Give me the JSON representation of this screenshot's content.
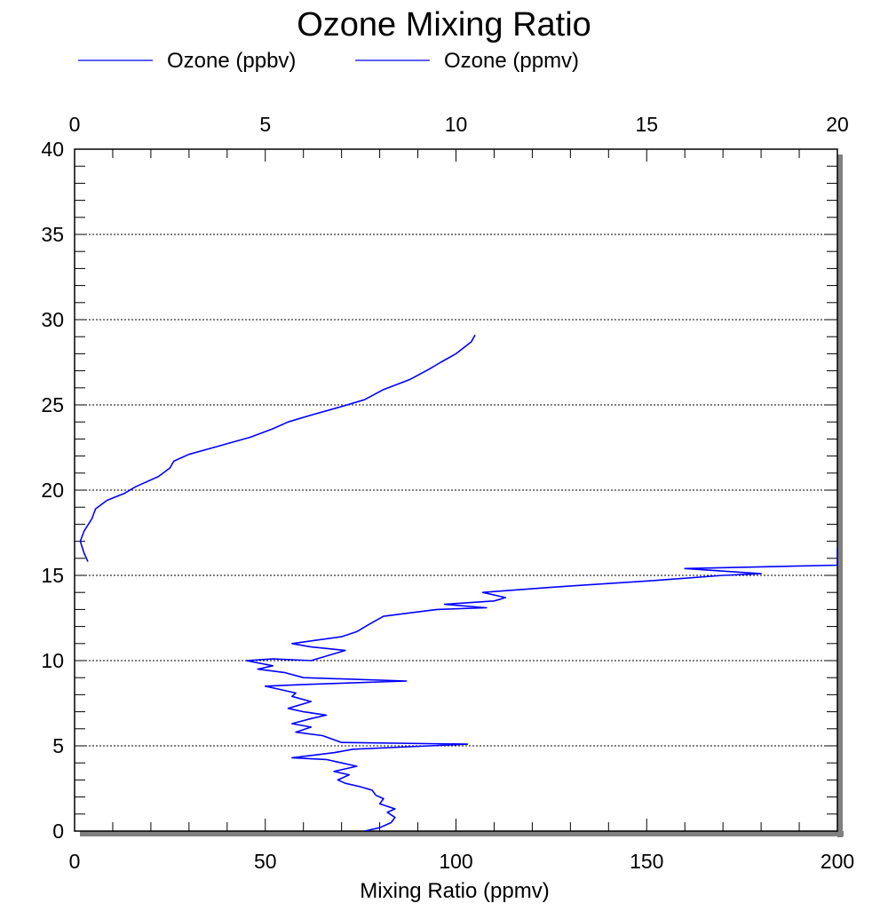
{
  "chart_data": {
    "type": "line",
    "title": "Ozone Mixing Ratio",
    "xlabel": "Mixing Ratio (ppmv)",
    "ylabel": "",
    "bottom_axis": {
      "range": [
        0,
        200
      ],
      "ticks": [
        "0",
        "50",
        "100",
        "150",
        "200"
      ],
      "tick_values": [
        0,
        50,
        100,
        150,
        200
      ]
    },
    "top_axis": {
      "range": [
        0,
        20
      ],
      "ticks": [
        "0",
        "5",
        "10",
        "15",
        "20"
      ],
      "tick_values": [
        0,
        5,
        10,
        15,
        20
      ]
    },
    "y_axis": {
      "range": [
        0,
        40
      ],
      "ticks": [
        "0",
        "5",
        "10",
        "15",
        "20",
        "25",
        "30",
        "35",
        "40"
      ],
      "tick_values": [
        0,
        5,
        10,
        15,
        20,
        25,
        30,
        35,
        40
      ]
    },
    "grid": {
      "horizontal": true,
      "style": "dotted"
    },
    "legend_position": "top",
    "series": [
      {
        "name": "Ozone (ppbv)",
        "axis": "bottom",
        "color": "#0000ff",
        "points": [
          [
            76,
            0.0
          ],
          [
            80,
            0.2
          ],
          [
            83,
            0.5
          ],
          [
            84,
            0.8
          ],
          [
            82,
            1.1
          ],
          [
            84,
            1.3
          ],
          [
            80,
            1.6
          ],
          [
            81,
            1.9
          ],
          [
            79,
            2.1
          ],
          [
            78,
            2.4
          ],
          [
            75,
            2.6
          ],
          [
            71,
            2.8
          ],
          [
            69,
            3.0
          ],
          [
            72,
            3.3
          ],
          [
            68,
            3.5
          ],
          [
            74,
            3.8
          ],
          [
            70,
            4.0
          ],
          [
            66,
            4.2
          ],
          [
            57,
            4.3
          ],
          [
            68,
            4.6
          ],
          [
            73,
            4.8
          ],
          [
            103,
            5.1
          ],
          [
            70,
            5.2
          ],
          [
            65,
            5.6
          ],
          [
            58,
            5.8
          ],
          [
            62,
            6.1
          ],
          [
            57,
            6.3
          ],
          [
            62,
            6.6
          ],
          [
            66,
            6.8
          ],
          [
            60,
            7.0
          ],
          [
            56,
            7.2
          ],
          [
            62,
            7.6
          ],
          [
            57,
            7.9
          ],
          [
            58,
            8.1
          ],
          [
            54,
            8.3
          ],
          [
            50,
            8.5
          ],
          [
            60,
            8.6
          ],
          [
            87,
            8.8
          ],
          [
            60,
            9.0
          ],
          [
            55,
            9.3
          ],
          [
            48,
            9.5
          ],
          [
            52,
            9.7
          ],
          [
            45,
            10.0
          ],
          [
            52,
            10.1
          ],
          [
            62,
            10.0
          ],
          [
            71,
            10.6
          ],
          [
            62,
            10.8
          ],
          [
            57,
            11.0
          ],
          [
            70,
            11.4
          ],
          [
            74,
            11.7
          ],
          [
            77,
            12.1
          ],
          [
            81,
            12.6
          ],
          [
            88,
            12.8
          ],
          [
            95,
            13.0
          ],
          [
            108,
            13.1
          ],
          [
            97,
            13.3
          ],
          [
            110,
            13.5
          ],
          [
            113,
            13.7
          ],
          [
            107,
            14.0
          ],
          [
            125,
            14.3
          ],
          [
            152,
            14.7
          ],
          [
            170,
            15.0
          ],
          [
            180,
            15.1
          ],
          [
            160,
            15.4
          ],
          [
            200,
            15.6
          ],
          [
            200,
            16.6
          ]
        ]
      },
      {
        "name": "Ozone (ppmv)",
        "axis": "top",
        "color": "#0000ff",
        "points": [
          [
            0.35,
            15.8
          ],
          [
            0.25,
            16.3
          ],
          [
            0.15,
            17.0
          ],
          [
            0.25,
            17.6
          ],
          [
            0.45,
            18.3
          ],
          [
            0.55,
            18.9
          ],
          [
            0.85,
            19.4
          ],
          [
            1.3,
            19.8
          ],
          [
            1.6,
            20.2
          ],
          [
            2.2,
            20.8
          ],
          [
            2.5,
            21.3
          ],
          [
            2.6,
            21.7
          ],
          [
            3.0,
            22.1
          ],
          [
            3.8,
            22.6
          ],
          [
            4.6,
            23.1
          ],
          [
            5.2,
            23.6
          ],
          [
            5.6,
            24.0
          ],
          [
            6.2,
            24.4
          ],
          [
            7.0,
            24.9
          ],
          [
            7.6,
            25.3
          ],
          [
            8.1,
            25.9
          ],
          [
            8.8,
            26.5
          ],
          [
            9.3,
            27.1
          ],
          [
            9.6,
            27.5
          ],
          [
            10.0,
            28.0
          ],
          [
            10.4,
            28.7
          ],
          [
            10.5,
            29.1
          ]
        ]
      }
    ]
  }
}
